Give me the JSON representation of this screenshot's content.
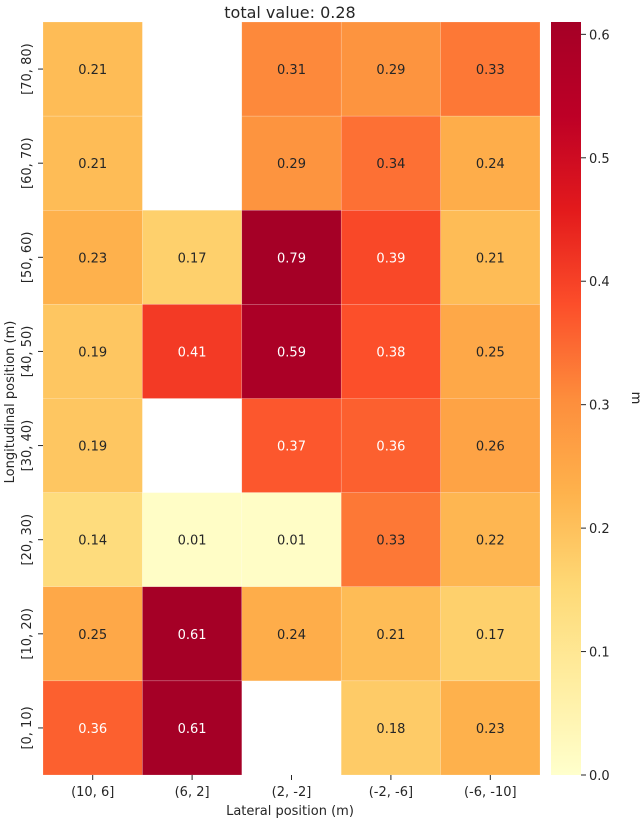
{
  "chart_data": {
    "type": "heatmap",
    "title": "total value: 0.28",
    "xlabel": "Lateral position (m)",
    "ylabel": "Longitudinal position (m)",
    "x_categories": [
      "(10, 6]",
      "(6, 2]",
      "(2, -2]",
      "(-2, -6]",
      "(-6, -10]"
    ],
    "y_categories": [
      "[70, 80)",
      "[60, 70)",
      "[50, 60)",
      "[40, 50)",
      "[30, 40)",
      "[20, 30)",
      "[10, 20)",
      "[0, 10)"
    ],
    "values": [
      [
        0.21,
        null,
        0.31,
        0.29,
        0.33
      ],
      [
        0.21,
        null,
        0.29,
        0.34,
        0.24
      ],
      [
        0.23,
        0.17,
        0.79,
        0.39,
        0.21
      ],
      [
        0.19,
        0.41,
        0.59,
        0.38,
        0.25
      ],
      [
        0.19,
        null,
        0.37,
        0.36,
        0.26
      ],
      [
        0.14,
        0.01,
        0.01,
        0.33,
        0.22
      ],
      [
        0.25,
        0.61,
        0.24,
        0.21,
        0.17
      ],
      [
        0.36,
        0.61,
        null,
        0.18,
        0.23
      ]
    ],
    "value_labels": [
      [
        "0.21",
        "",
        "0.31",
        "0.29",
        "0.33"
      ],
      [
        "0.21",
        "",
        "0.29",
        "0.34",
        "0.24"
      ],
      [
        "0.23",
        "0.17",
        "0.79",
        "0.39",
        "0.21"
      ],
      [
        "0.19",
        "0.41",
        "0.59",
        "0.38",
        "0.25"
      ],
      [
        "0.19",
        "",
        "0.37",
        "0.36",
        "0.26"
      ],
      [
        "0.14",
        "0.01",
        "0.01",
        "0.33",
        "0.22"
      ],
      [
        "0.25",
        "0.61",
        "0.24",
        "0.21",
        "0.17"
      ],
      [
        "0.36",
        "0.61",
        "",
        "0.18",
        "0.23"
      ]
    ],
    "colorbar": {
      "label": "m",
      "vmin": 0.0,
      "vmax": 0.61,
      "ticks": [
        0.0,
        0.1,
        0.2,
        0.3,
        0.4,
        0.5,
        0.6
      ],
      "tick_labels": [
        "0.0",
        "0.1",
        "0.2",
        "0.3",
        "0.4",
        "0.5",
        "0.6"
      ],
      "colormap": "YlOrRd",
      "colormap_stops": [
        "#ffffcc",
        "#ffeda0",
        "#fed976",
        "#feb24c",
        "#fd8d3c",
        "#fc4e2a",
        "#e31a1c",
        "#bd0026",
        "#a50026"
      ]
    }
  }
}
